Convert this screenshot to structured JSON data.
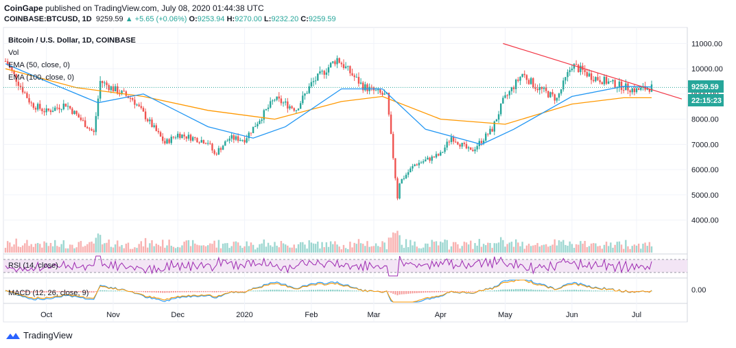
{
  "header": {
    "publisher": "CoinGape",
    "published_text": " published on TradingView.com, July 08, 2020 01:44:38 UTC",
    "symbol_line": "COINBASE:BTCUSD, 1D",
    "last_price": "9259.59",
    "change": "+5.65 (+0.06%)",
    "o_label": "O:",
    "o_value": "9253.94",
    "h_label": "H:",
    "h_value": "9270.00",
    "l_label": "L:",
    "l_value": "9232.20",
    "c_label": "C:",
    "c_value": "9259.59"
  },
  "legend": {
    "title": "Bitcoin / U.S. Dollar, 1D, COINBASE",
    "vol": "Vol",
    "ema50": "EMA (50, close, 0)",
    "ema100": "EMA (100, close, 0)"
  },
  "price_tag": {
    "value": "9259.59",
    "countdown": "22:15:23"
  },
  "rsi_label": "RSI (14, close)",
  "macd_label": "MACD (12, 26, close, 9)",
  "macd_axis_label": "0.00",
  "footer": {
    "brand": "TradingView"
  },
  "colors": {
    "up": "#26a69a",
    "down": "#ef5350",
    "ema50": "#2196f3",
    "ema100": "#ff9800",
    "trendline": "#f23645",
    "rsi": "#9c27b0",
    "rsi_band": "#f3e5f5",
    "macd": "#2196f3",
    "signal": "#ff9800",
    "price_tag_bg": "#26a69a",
    "countdown_bg": "#26a69a"
  },
  "chart_data": {
    "type": "candlestick",
    "title": "Bitcoin / U.S. Dollar, 1D, COINBASE",
    "xlabel": "",
    "ylabel": "",
    "ylim": [
      3200,
      11500
    ],
    "y_ticks": [
      4000,
      5000,
      6000,
      7000,
      8000,
      9000,
      10000,
      11000
    ],
    "y_tick_labels": [
      "4000.00",
      "5000.00",
      "6000.00",
      "7000.00",
      "8000.00",
      "9000.00",
      "10000.00",
      "11000.00"
    ],
    "x_ticks": [
      "Oct",
      "Nov",
      "Dec",
      "2020",
      "Feb",
      "Mar",
      "Apr",
      "May",
      "Jun",
      "Jul"
    ],
    "x_tick_dates": [
      "2019-10-01",
      "2019-11-01",
      "2019-12-01",
      "2020-01-01",
      "2020-02-01",
      "2020-03-01",
      "2020-04-01",
      "2020-05-01",
      "2020-06-01",
      "2020-07-01"
    ],
    "start_date": "2019-09-12",
    "end_date": "2020-07-08",
    "close_path": [
      [
        "2019-09-12",
        10300
      ],
      [
        "2019-09-24",
        8600
      ],
      [
        "2019-10-01",
        8300
      ],
      [
        "2019-10-10",
        8600
      ],
      [
        "2019-10-23",
        7450
      ],
      [
        "2019-10-26",
        9500
      ],
      [
        "2019-11-01",
        9200
      ],
      [
        "2019-11-10",
        8800
      ],
      [
        "2019-11-25",
        7050
      ],
      [
        "2019-12-01",
        7400
      ],
      [
        "2019-12-15",
        7100
      ],
      [
        "2019-12-18",
        6600
      ],
      [
        "2019-12-25",
        7250
      ],
      [
        "2020-01-01",
        7200
      ],
      [
        "2020-01-15",
        8800
      ],
      [
        "2020-01-25",
        8400
      ],
      [
        "2020-02-01",
        9400
      ],
      [
        "2020-02-13",
        10400
      ],
      [
        "2020-02-25",
        9300
      ],
      [
        "2020-03-07",
        8900
      ],
      [
        "2020-03-12",
        4900
      ],
      [
        "2020-03-13",
        5500
      ],
      [
        "2020-03-20",
        6200
      ],
      [
        "2020-04-01",
        6600
      ],
      [
        "2020-04-06",
        7300
      ],
      [
        "2020-04-15",
        6700
      ],
      [
        "2020-04-25",
        7600
      ],
      [
        "2020-04-30",
        8700
      ],
      [
        "2020-05-09",
        9800
      ],
      [
        "2020-05-15",
        9300
      ],
      [
        "2020-05-25",
        8800
      ],
      [
        "2020-06-01",
        10150
      ],
      [
        "2020-06-10",
        9700
      ],
      [
        "2020-06-20",
        9400
      ],
      [
        "2020-07-01",
        9150
      ],
      [
        "2020-07-08",
        9259.59
      ]
    ],
    "ema50": [
      [
        "2019-09-12",
        10200
      ],
      [
        "2019-10-01",
        9500
      ],
      [
        "2019-10-25",
        8650
      ],
      [
        "2019-11-15",
        9000
      ],
      [
        "2019-12-15",
        7700
      ],
      [
        "2020-01-05",
        7250
      ],
      [
        "2020-01-20",
        7700
      ],
      [
        "2020-02-15",
        9200
      ],
      [
        "2020-03-05",
        9200
      ],
      [
        "2020-03-25",
        7600
      ],
      [
        "2020-04-20",
        7000
      ],
      [
        "2020-05-05",
        7600
      ],
      [
        "2020-06-01",
        8900
      ],
      [
        "2020-06-25",
        9300
      ],
      [
        "2020-07-08",
        9280
      ]
    ],
    "ema100": [
      [
        "2019-09-12",
        10000
      ],
      [
        "2019-10-15",
        9250
      ],
      [
        "2019-11-15",
        8900
      ],
      [
        "2019-12-15",
        8350
      ],
      [
        "2020-01-15",
        8000
      ],
      [
        "2020-02-15",
        8700
      ],
      [
        "2020-03-05",
        8900
      ],
      [
        "2020-04-01",
        8000
      ],
      [
        "2020-05-01",
        7800
      ],
      [
        "2020-06-01",
        8600
      ],
      [
        "2020-06-25",
        8850
      ],
      [
        "2020-07-08",
        8850
      ]
    ],
    "trendline": [
      [
        "2020-04-30",
        11000
      ],
      [
        "2020-07-22",
        8800
      ]
    ],
    "last_price": 9259.59
  }
}
